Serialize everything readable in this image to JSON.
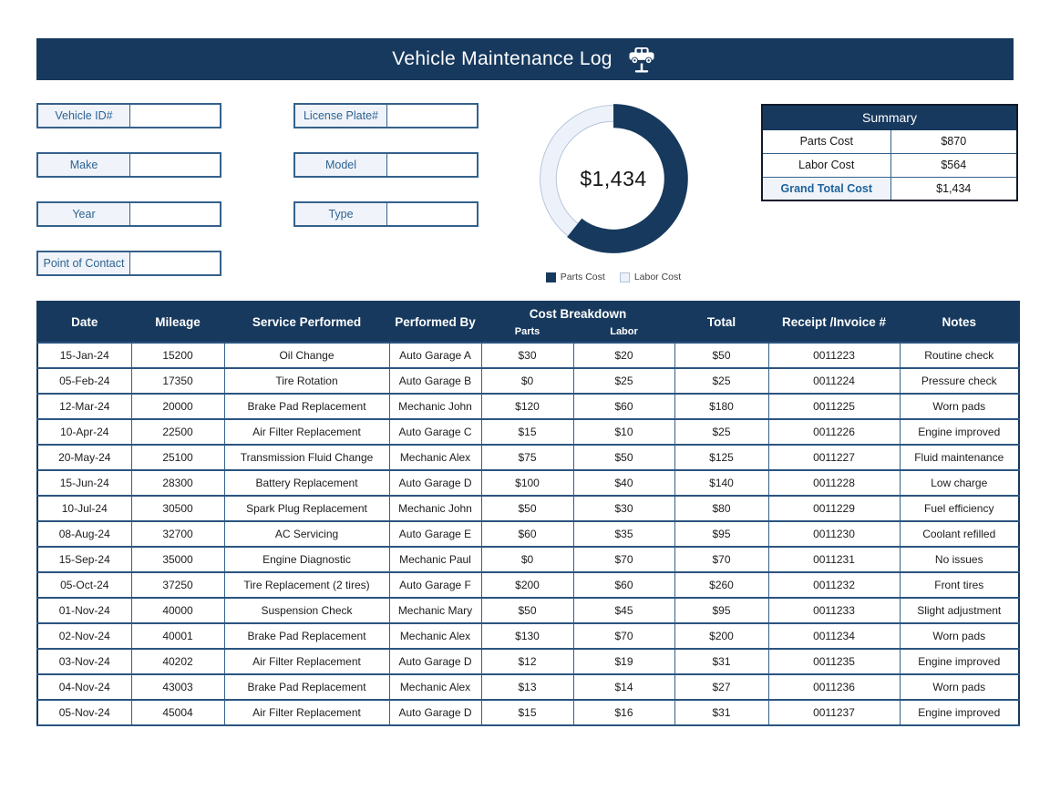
{
  "title": {
    "text": "Vehicle Maintenance Log",
    "icon": "car-lift-icon"
  },
  "colors": {
    "navy": "#17395E",
    "grid_blue": "#35618C",
    "light_fill": "#F0F4FA",
    "label_blue": "#2E6391",
    "parts_slice": "#17395E",
    "labor_slice": "#EDF2FA",
    "labor_slice_outline": "#B3C2DA"
  },
  "vehicle_form": {
    "left": [
      {
        "label": "Vehicle ID#",
        "value": ""
      },
      {
        "label": "Make",
        "value": ""
      },
      {
        "label": "Year",
        "value": ""
      },
      {
        "label": "Point of Contact",
        "value": ""
      }
    ],
    "right": [
      {
        "label": "License Plate#",
        "value": ""
      },
      {
        "label": "Model",
        "value": ""
      },
      {
        "label": "Type",
        "value": ""
      }
    ]
  },
  "chart_data": {
    "type": "pie",
    "subtype": "donut",
    "title": "",
    "center_label": "$1,434",
    "total": 1434,
    "series": [
      {
        "name": "Parts Cost",
        "value": 870,
        "color": "#17395E"
      },
      {
        "name": "Labor Cost",
        "value": 564,
        "color": "#EDF2FA"
      }
    ],
    "legend_position": "bottom"
  },
  "summary": {
    "title": "Summary",
    "rows": [
      {
        "label": "Parts Cost",
        "value": "$870",
        "emphasis": false
      },
      {
        "label": "Labor Cost",
        "value": "$564",
        "emphasis": false
      },
      {
        "label": "Grand Total Cost",
        "value": "$1,434",
        "emphasis": true
      }
    ]
  },
  "log_table": {
    "columns": [
      "Date",
      "Mileage",
      "Service Performed",
      "Performed By",
      "Cost Breakdown",
      "Parts",
      "Labor",
      "Total",
      "Receipt /Invoice #",
      "Notes"
    ],
    "rows": [
      [
        "15-Jan-24",
        "15200",
        "Oil Change",
        "Auto Garage A",
        "$30",
        "$20",
        "$50",
        "0011223",
        "Routine check"
      ],
      [
        "05-Feb-24",
        "17350",
        "Tire Rotation",
        "Auto Garage B",
        "$0",
        "$25",
        "$25",
        "0011224",
        "Pressure check"
      ],
      [
        "12-Mar-24",
        "20000",
        "Brake Pad Replacement",
        "Mechanic John",
        "$120",
        "$60",
        "$180",
        "0011225",
        "Worn pads"
      ],
      [
        "10-Apr-24",
        "22500",
        "Air Filter Replacement",
        "Auto Garage C",
        "$15",
        "$10",
        "$25",
        "0011226",
        "Engine improved"
      ],
      [
        "20-May-24",
        "25100",
        "Transmission Fluid Change",
        "Mechanic Alex",
        "$75",
        "$50",
        "$125",
        "0011227",
        "Fluid maintenance"
      ],
      [
        "15-Jun-24",
        "28300",
        "Battery Replacement",
        "Auto Garage D",
        "$100",
        "$40",
        "$140",
        "0011228",
        "Low charge"
      ],
      [
        "10-Jul-24",
        "30500",
        "Spark Plug Replacement",
        "Mechanic John",
        "$50",
        "$30",
        "$80",
        "0011229",
        "Fuel efficiency"
      ],
      [
        "08-Aug-24",
        "32700",
        "AC Servicing",
        "Auto Garage E",
        "$60",
        "$35",
        "$95",
        "0011230",
        "Coolant refilled"
      ],
      [
        "15-Sep-24",
        "35000",
        "Engine Diagnostic",
        "Mechanic Paul",
        "$0",
        "$70",
        "$70",
        "0011231",
        "No issues"
      ],
      [
        "05-Oct-24",
        "37250",
        "Tire Replacement (2 tires)",
        "Auto Garage F",
        "$200",
        "$60",
        "$260",
        "0011232",
        "Front tires"
      ],
      [
        "01-Nov-24",
        "40000",
        "Suspension Check",
        "Mechanic Mary",
        "$50",
        "$45",
        "$95",
        "0011233",
        "Slight adjustment"
      ],
      [
        "02-Nov-24",
        "40001",
        "Brake Pad Replacement",
        "Mechanic Alex",
        "$130",
        "$70",
        "$200",
        "0011234",
        "Worn pads"
      ],
      [
        "03-Nov-24",
        "40202",
        "Air Filter Replacement",
        "Auto Garage D",
        "$12",
        "$19",
        "$31",
        "0011235",
        "Engine improved"
      ],
      [
        "04-Nov-24",
        "43003",
        "Brake Pad Replacement",
        "Mechanic Alex",
        "$13",
        "$14",
        "$27",
        "0011236",
        "Worn pads"
      ],
      [
        "05-Nov-24",
        "45004",
        "Air Filter Replacement",
        "Auto Garage D",
        "$15",
        "$16",
        "$31",
        "0011237",
        "Engine improved"
      ]
    ]
  }
}
